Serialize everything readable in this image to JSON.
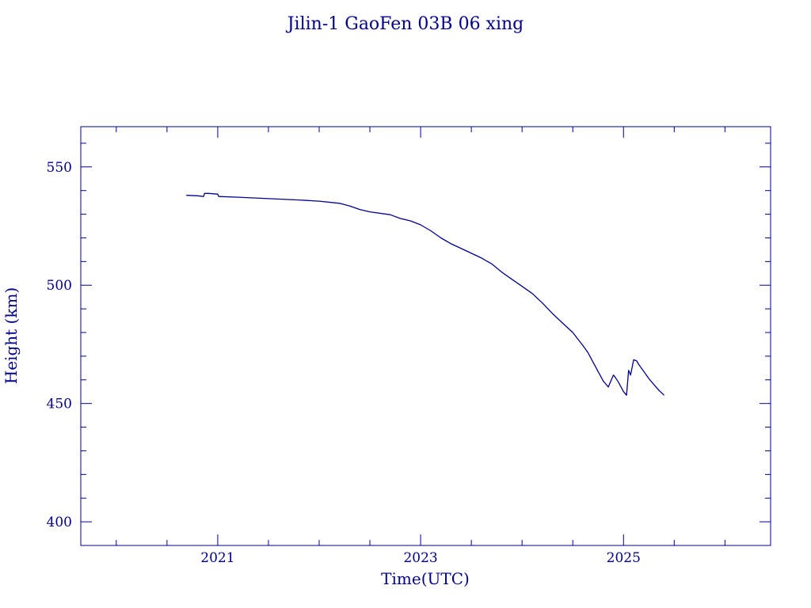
{
  "chart_data": {
    "type": "line",
    "title": "Jilin-1 GaoFen 03B 06 xing",
    "xlabel": "Time(UTC)",
    "ylabel": "Height (km)",
    "xlim": [
      2019.65,
      2026.45
    ],
    "ylim": [
      390,
      567
    ],
    "x_ticks": [
      2021,
      2023,
      2025
    ],
    "x_tick_labels": [
      "2021",
      "2023",
      "2025"
    ],
    "y_ticks": [
      400,
      450,
      500,
      550
    ],
    "y_tick_labels": [
      "400",
      "450",
      "500",
      "550"
    ],
    "grid": false,
    "colors": {
      "axis": "#00008b",
      "line": "#00008b",
      "background": "#ffffff"
    },
    "series": [
      {
        "x": [
          2020.69,
          2020.8,
          2020.86,
          2020.87,
          2020.91,
          2021.0,
          2021.01,
          2021.2,
          2021.5,
          2021.8,
          2022.0,
          2022.2,
          2022.3,
          2022.4,
          2022.5,
          2022.7,
          2022.8,
          2022.9,
          2023.0,
          2023.1,
          2023.2,
          2023.3,
          2023.4,
          2023.5,
          2023.6,
          2023.7,
          2023.8,
          2023.9,
          2024.0,
          2024.1,
          2024.2,
          2024.3,
          2024.4,
          2024.5,
          2024.6,
          2024.65,
          2024.7,
          2024.75,
          2024.8,
          2024.85,
          2024.9,
          2024.92,
          2024.95,
          2025.0,
          2025.03,
          2025.05,
          2025.07,
          2025.1,
          2025.13,
          2025.15,
          2025.2,
          2025.25,
          2025.3,
          2025.35,
          2025.4
        ],
        "y": [
          538,
          537.8,
          537.5,
          538.8,
          538.8,
          538.5,
          537.5,
          537.2,
          536.6,
          536.0,
          535.5,
          534.6,
          533.5,
          532.0,
          531.0,
          529.8,
          528.2,
          527.2,
          525.5,
          523.0,
          520.0,
          517.5,
          515.5,
          513.5,
          511.5,
          509.0,
          505.5,
          502.5,
          499.5,
          496.5,
          492.5,
          488.0,
          484.0,
          480.0,
          474.5,
          471.5,
          467.5,
          463.5,
          459.5,
          457.0,
          462.0,
          461.0,
          459.0,
          455.0,
          453.5,
          464.0,
          462.0,
          468.5,
          468.0,
          466.5,
          463.5,
          460.5,
          458.0,
          455.5,
          453.5
        ]
      }
    ]
  }
}
